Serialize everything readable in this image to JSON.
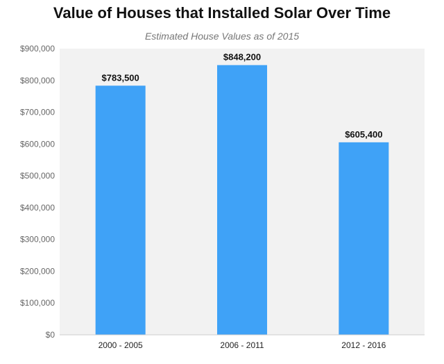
{
  "chart_data": {
    "type": "bar",
    "title": "Value of Houses that Installed Solar Over Time",
    "subtitle": "Estimated House Values as of 2015",
    "categories": [
      "2000 - 2005",
      "2006 - 2011",
      "2012 - 2016"
    ],
    "values": [
      783500,
      848200,
      605400
    ],
    "data_labels": [
      "$783,500",
      "$848,200",
      "$605,400"
    ],
    "y_ticks": [
      0,
      100000,
      200000,
      300000,
      400000,
      500000,
      600000,
      700000,
      800000,
      900000
    ],
    "y_tick_labels": [
      "$0",
      "$100,000",
      "$200,000",
      "$300,000",
      "$400,000",
      "$500,000",
      "$600,000",
      "$700,000",
      "$800,000",
      "$900,000"
    ],
    "ylim": [
      0,
      900000
    ],
    "xlabel": "",
    "ylabel": "",
    "grid": false,
    "legend": "none",
    "bar_color": "#3fa2f7",
    "plot_background": "#f2f2f2"
  }
}
